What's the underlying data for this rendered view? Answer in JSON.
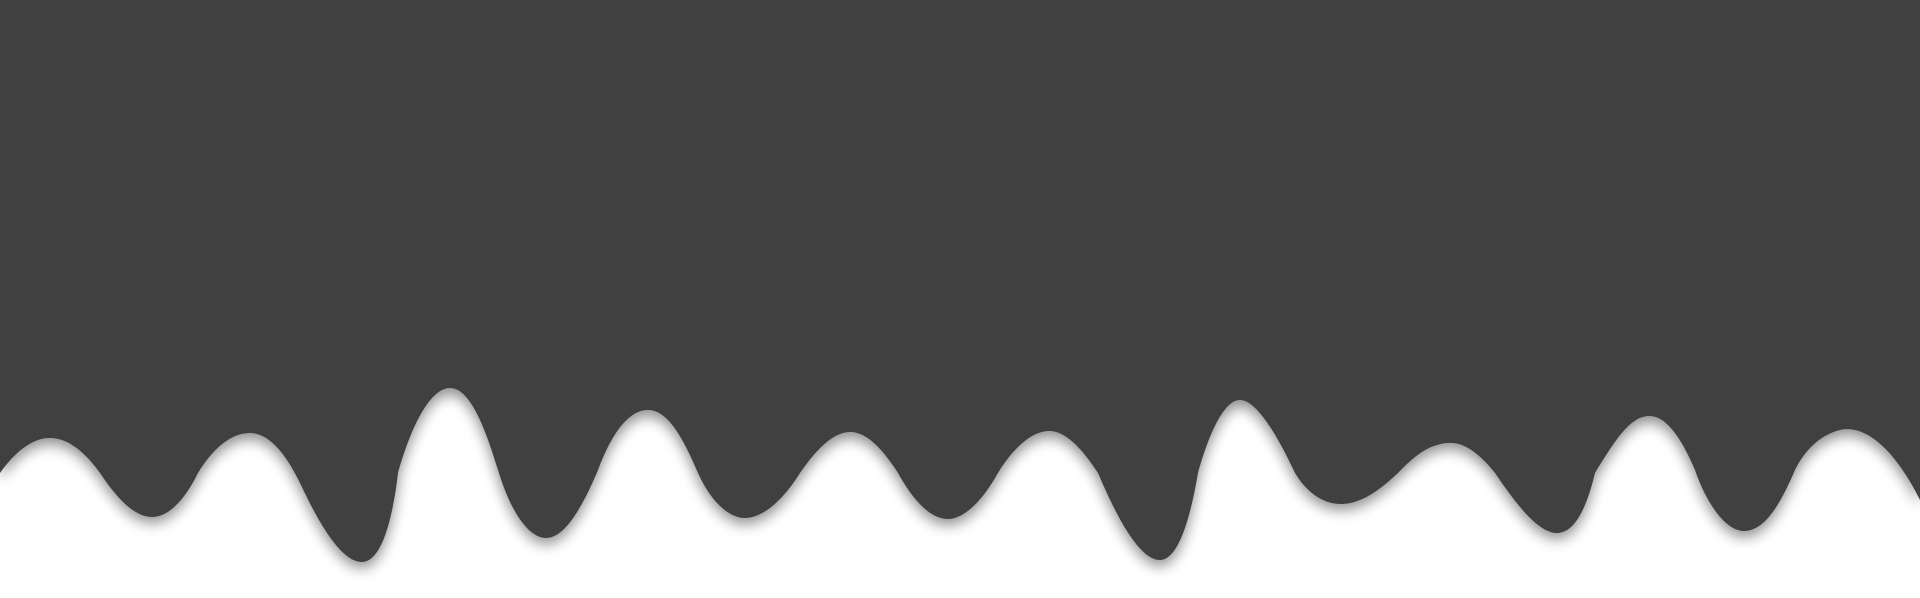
{
  "scene": {
    "background_color": "#ffffff",
    "fill_color": "#414141",
    "shadow_color": "#000000",
    "shape": "dripping-paint-border"
  }
}
